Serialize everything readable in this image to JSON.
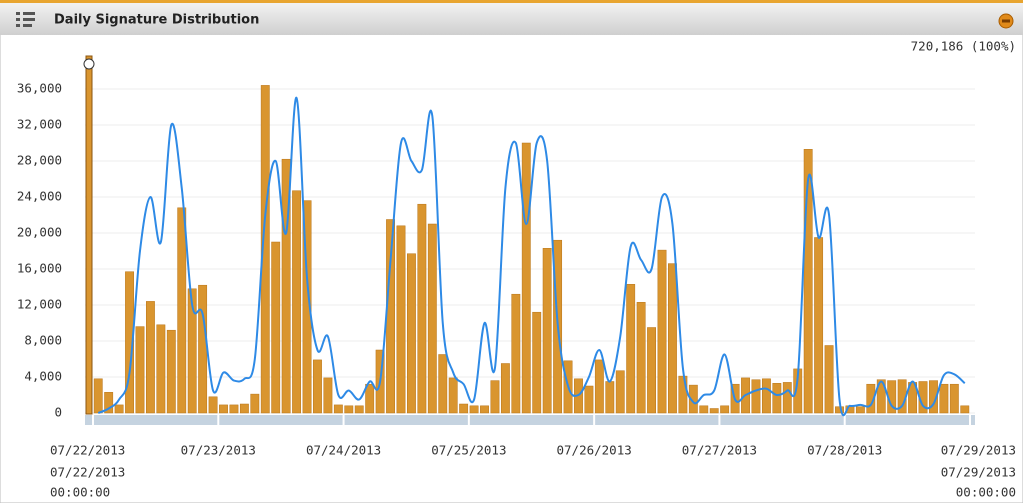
{
  "header": {
    "title": "Daily Signature Distribution"
  },
  "chart_data": {
    "type": "bar",
    "total_label": "720,186 (100%)",
    "xlim": [
      0,
      84
    ],
    "xticks": [
      {
        "value": 0,
        "label": "07/22/2013"
      },
      {
        "value": 12,
        "label": "07/23/2013"
      },
      {
        "value": 24,
        "label": "07/24/2013"
      },
      {
        "value": 36,
        "label": "07/25/2013"
      },
      {
        "value": 48,
        "label": "07/26/2013"
      },
      {
        "value": 60,
        "label": "07/27/2013"
      },
      {
        "value": 72,
        "label": "07/28/2013"
      },
      {
        "value": 84,
        "label": "07/29/2013"
      }
    ],
    "ylim": [
      0,
      38000
    ],
    "yticks": [
      0,
      {
        "value": 4000,
        "label": "4,000"
      },
      {
        "value": 8000,
        "label": "8,000"
      },
      {
        "value": 12000,
        "label": "12,000"
      },
      {
        "value": 16000,
        "label": "16,000"
      },
      {
        "value": 20000,
        "label": "20,000"
      },
      {
        "value": 24000,
        "label": "24,000"
      },
      {
        "value": 28000,
        "label": "28,000"
      },
      {
        "value": 32000,
        "label": "32,000"
      },
      {
        "value": 36000,
        "label": "36,000"
      }
    ],
    "grid": true,
    "range_start": {
      "date": "07/22/2013",
      "time": "00:00:00"
    },
    "range_end": {
      "date": "07/29/2013",
      "time": "00:00:00"
    },
    "series": [
      {
        "type": "bar",
        "color": "#d9952f",
        "values": [
          3800,
          2300,
          900,
          15700,
          9600,
          12400,
          9800,
          9200,
          22800,
          13800,
          14200,
          1800,
          900,
          900,
          1000,
          2100,
          36400,
          19000,
          28200,
          24700,
          23600,
          5900,
          3900,
          900,
          800,
          800,
          3200,
          7000,
          21500,
          20800,
          17700,
          23200,
          21000,
          6500,
          3900,
          1000,
          800,
          800,
          3600,
          5500,
          13200,
          30000,
          11200,
          18300,
          19200,
          5800,
          3800,
          3000,
          5900,
          3500,
          4700,
          14300,
          12300,
          9500,
          18100,
          16600,
          4100,
          3100,
          800,
          500,
          800,
          3200,
          3900,
          3700,
          3800,
          3300,
          3400,
          4900,
          29300,
          19500,
          7500,
          700,
          800,
          700,
          3200,
          3700,
          3600,
          3700,
          3400,
          3500,
          3600,
          3200,
          3200,
          800
        ]
      },
      {
        "type": "line",
        "color": "#2e8ae6",
        "values": [
          0,
          500,
          1500,
          4500,
          18000,
          24000,
          19000,
          32000,
          25000,
          12000,
          11000,
          2500,
          4500,
          3600,
          3800,
          6000,
          22000,
          28000,
          20000,
          35000,
          15000,
          7000,
          8500,
          2000,
          2500,
          1500,
          3500,
          3500,
          17000,
          30000,
          28000,
          27000,
          33000,
          10000,
          4500,
          3200,
          1500,
          10000,
          5000,
          25000,
          30000,
          21000,
          30000,
          28000,
          10000,
          3000,
          2000,
          4000,
          7000,
          3500,
          8500,
          18500,
          17000,
          16000,
          24000,
          21000,
          5000,
          1200,
          2000,
          2500,
          6500,
          1500,
          2000,
          2500,
          2700,
          2000,
          2500,
          4000,
          26000,
          19500,
          22000,
          1500,
          800,
          900,
          900,
          3500,
          800,
          800,
          3500,
          800,
          1000,
          4200,
          4300,
          3300
        ]
      }
    ]
  }
}
